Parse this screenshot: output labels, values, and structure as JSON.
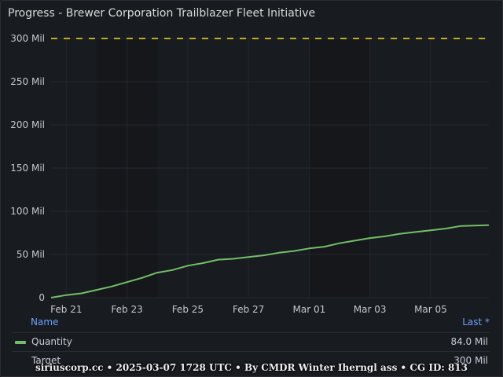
{
  "panel": {
    "title": "Progress - Brewer Corporation Trailblazer Fleet Initiative"
  },
  "chart_data": {
    "type": "line",
    "title": "Progress - Brewer Corporation Trailblazer Fleet Initiative",
    "x_ticks": [
      "Feb 21",
      "Feb 23",
      "Feb 25",
      "Feb 27",
      "Mar 01",
      "Mar 03",
      "Mar 05"
    ],
    "y_ticks": [
      "0",
      "50 Mil",
      "100 Mil",
      "150 Mil",
      "200 Mil",
      "250 Mil",
      "300 Mil"
    ],
    "xlim": [
      "2025-02-20T12:00",
      "2025-03-06T22:00"
    ],
    "ylim": [
      0,
      300000000
    ],
    "grid": true,
    "series": [
      {
        "name": "Quantity",
        "color": "#73bf69",
        "style": "solid",
        "points": [
          [
            "2025-02-20T12:00",
            0
          ],
          [
            "2025-02-21T00:00",
            3000000
          ],
          [
            "2025-02-21T12:00",
            5000000
          ],
          [
            "2025-02-22T00:00",
            9000000
          ],
          [
            "2025-02-22T12:00",
            13000000
          ],
          [
            "2025-02-23T00:00",
            18000000
          ],
          [
            "2025-02-23T12:00",
            23000000
          ],
          [
            "2025-02-24T00:00",
            29000000
          ],
          [
            "2025-02-24T12:00",
            32000000
          ],
          [
            "2025-02-25T00:00",
            37000000
          ],
          [
            "2025-02-25T12:00",
            40000000
          ],
          [
            "2025-02-26T00:00",
            44000000
          ],
          [
            "2025-02-26T12:00",
            45000000
          ],
          [
            "2025-02-27T00:00",
            47000000
          ],
          [
            "2025-02-27T12:00",
            49000000
          ],
          [
            "2025-02-28T00:00",
            52000000
          ],
          [
            "2025-02-28T12:00",
            54000000
          ],
          [
            "2025-03-01T00:00",
            57000000
          ],
          [
            "2025-03-01T12:00",
            59000000
          ],
          [
            "2025-03-02T00:00",
            63000000
          ],
          [
            "2025-03-02T12:00",
            66000000
          ],
          [
            "2025-03-03T00:00",
            69000000
          ],
          [
            "2025-03-03T12:00",
            71000000
          ],
          [
            "2025-03-04T00:00",
            74000000
          ],
          [
            "2025-03-04T12:00",
            76000000
          ],
          [
            "2025-03-05T00:00",
            78000000
          ],
          [
            "2025-03-05T12:00",
            80000000
          ],
          [
            "2025-03-06T00:00",
            83000000
          ],
          [
            "2025-03-06T22:00",
            84000000
          ]
        ]
      },
      {
        "name": "Target",
        "color": "#fade2a",
        "style": "dashed",
        "points": [
          [
            "2025-02-20T12:00",
            300000000
          ],
          [
            "2025-03-06T22:00",
            300000000
          ]
        ]
      }
    ],
    "shaded_bands": [
      [
        "2025-02-22T00:00",
        "2025-02-24T00:00"
      ],
      [
        "2025-03-01T00:00",
        "2025-03-03T00:00"
      ]
    ]
  },
  "legend": {
    "header_name": "Name",
    "header_value": "Last *",
    "rows": [
      {
        "name": "Quantity",
        "value": "84.0 Mil",
        "color": "#73bf69",
        "style": "solid"
      },
      {
        "name": "Target",
        "value": "300 Mil",
        "color": "#fade2a",
        "style": "dashed"
      }
    ]
  },
  "footer": {
    "watermark": "siriuscorp.cc • 2025-03-07 1728 UTC • By CMDR Winter Iherngl ass • CG ID: 813"
  }
}
